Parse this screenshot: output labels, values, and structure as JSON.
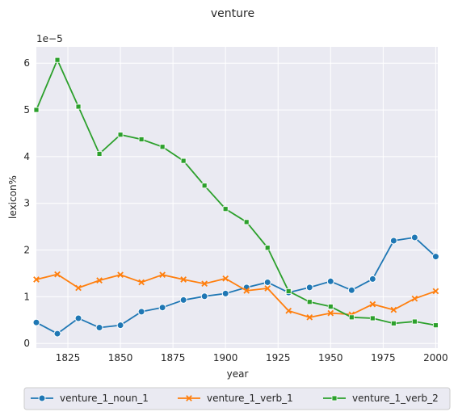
{
  "chart_data": {
    "type": "line",
    "title": "venture",
    "xlabel": "year",
    "ylabel": "lexicon%",
    "scale_label": "1e−5",
    "xlim": [
      1810,
      2001
    ],
    "ylim": [
      -0.1,
      6.35
    ],
    "xticks": [
      1825,
      1850,
      1875,
      1900,
      1925,
      1950,
      1975,
      2000
    ],
    "yticks": [
      0,
      1,
      2,
      3,
      4,
      5,
      6
    ],
    "grid": true,
    "legend_position": "bottom",
    "x": [
      1810,
      1820,
      1830,
      1840,
      1850,
      1860,
      1870,
      1880,
      1890,
      1900,
      1910,
      1920,
      1930,
      1940,
      1950,
      1960,
      1970,
      1980,
      1990,
      2000
    ],
    "series": [
      {
        "name": "venture_1_noun_1",
        "color": "#1f77b4",
        "marker": "circle",
        "values": [
          0.45,
          0.21,
          0.54,
          0.34,
          0.39,
          0.68,
          0.77,
          0.93,
          1.01,
          1.07,
          1.2,
          1.31,
          1.09,
          1.2,
          1.33,
          1.14,
          1.38,
          2.2,
          2.27,
          1.86
        ]
      },
      {
        "name": "venture_1_verb_1",
        "color": "#ff7f0e",
        "marker": "x",
        "values": [
          1.37,
          1.48,
          1.19,
          1.35,
          1.47,
          1.31,
          1.47,
          1.37,
          1.28,
          1.39,
          1.13,
          1.18,
          0.7,
          0.56,
          0.65,
          0.62,
          0.84,
          0.72,
          0.96,
          1.12
        ]
      },
      {
        "name": "venture_1_verb_2",
        "color": "#2ca02c",
        "marker": "square",
        "values": [
          5.0,
          6.07,
          5.07,
          4.06,
          4.47,
          4.37,
          4.21,
          3.91,
          3.38,
          2.88,
          2.6,
          2.05,
          1.12,
          0.89,
          0.79,
          0.56,
          0.54,
          0.43,
          0.47,
          0.39
        ]
      }
    ]
  }
}
